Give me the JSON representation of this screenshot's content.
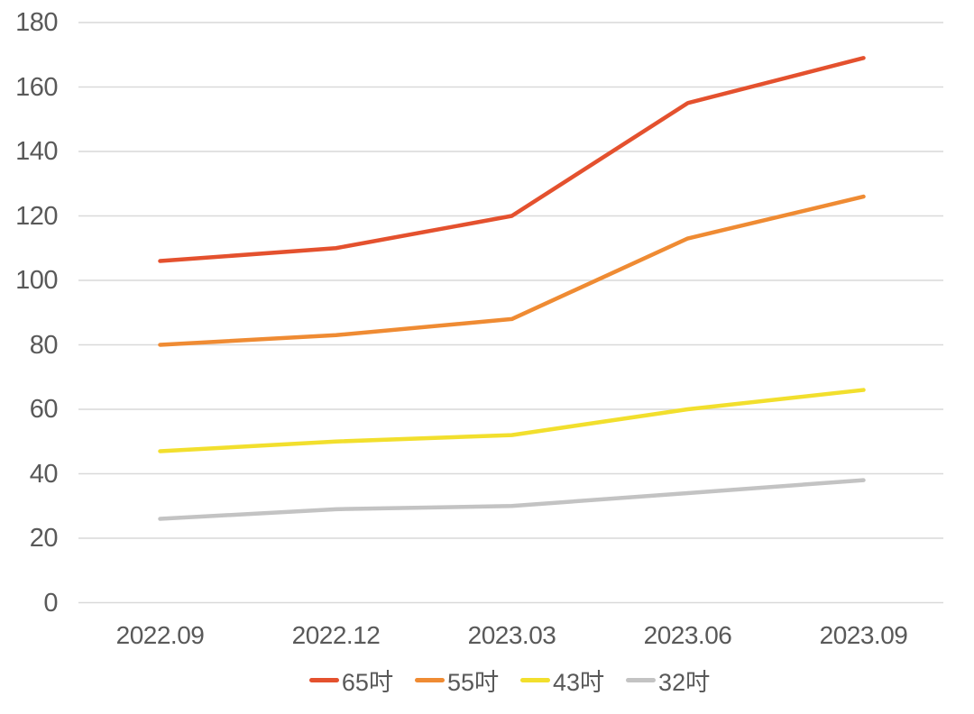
{
  "chart_data": {
    "type": "line",
    "title": "",
    "xlabel": "",
    "ylabel": "",
    "categories": [
      "2022.09",
      "2022.12",
      "2023.03",
      "2023.06",
      "2023.09"
    ],
    "series": [
      {
        "name": "65吋",
        "color": "#E4512E",
        "values": [
          106,
          110,
          120,
          155,
          169
        ]
      },
      {
        "name": "55吋",
        "color": "#EF8B33",
        "values": [
          80,
          83,
          88,
          113,
          126
        ]
      },
      {
        "name": "43吋",
        "color": "#F2DF2D",
        "values": [
          47,
          50,
          52,
          60,
          66
        ]
      },
      {
        "name": "32吋",
        "color": "#C3C3C3",
        "values": [
          26,
          29,
          30,
          34,
          38
        ]
      }
    ],
    "ylim": [
      0,
      180
    ],
    "ytick_step": 20,
    "ytick_labels": [
      "0",
      "20",
      "40",
      "60",
      "80",
      "100",
      "120",
      "140",
      "160",
      "180"
    ],
    "grid": true,
    "legend_position": "bottom",
    "colors": {
      "grid": "#D9D9D9",
      "axis_text": "#595959",
      "background": "#FFFFFF"
    }
  }
}
